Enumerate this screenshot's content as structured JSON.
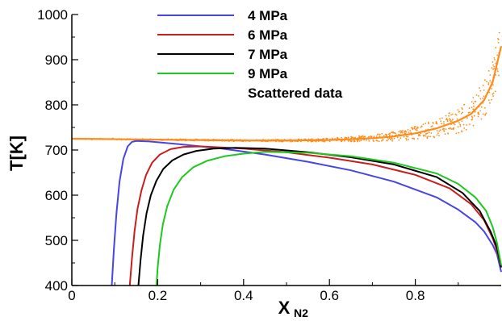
{
  "chart_data": {
    "type": "line",
    "title": "",
    "xlabel": "X",
    "xlabel_subscript": "N2",
    "ylabel": "T[K]",
    "xlim": [
      0,
      1
    ],
    "ylim": [
      400,
      1000
    ],
    "xticks": [
      0,
      0.2,
      0.4,
      0.6,
      0.8
    ],
    "xtick_labels": [
      "0",
      "0.2",
      "0.4",
      "0.6",
      "0.8"
    ],
    "yticks": [
      400,
      500,
      600,
      700,
      800,
      900,
      1000
    ],
    "ytick_labels": [
      "400",
      "500",
      "600",
      "700",
      "800",
      "900",
      "1000"
    ],
    "grid": false,
    "legend_position": "top-center",
    "series": [
      {
        "name": "4 MPa",
        "color": "#4646e6",
        "x": [
          0.093,
          0.098,
          0.104,
          0.111,
          0.12,
          0.13,
          0.14,
          0.15,
          0.18,
          0.25,
          0.35,
          0.45,
          0.55,
          0.65,
          0.75,
          0.85,
          0.9,
          0.94,
          0.96,
          0.98,
          0.99,
          1.0
        ],
        "y": [
          400,
          480,
          560,
          630,
          680,
          708,
          718,
          720,
          719,
          713,
          703,
          690,
          674,
          655,
          630,
          595,
          568,
          540,
          520,
          490,
          470,
          430
        ]
      },
      {
        "name": "6 MPa",
        "color": "#c81e1e",
        "x": [
          0.135,
          0.14,
          0.146,
          0.153,
          0.162,
          0.173,
          0.187,
          0.205,
          0.23,
          0.26,
          0.3,
          0.4,
          0.5,
          0.6,
          0.7,
          0.8,
          0.88,
          0.93,
          0.96,
          0.98,
          0.99,
          1.0
        ],
        "y": [
          400,
          460,
          520,
          570,
          610,
          645,
          672,
          690,
          702,
          707,
          708,
          703,
          695,
          683,
          668,
          645,
          615,
          580,
          545,
          505,
          478,
          440
        ]
      },
      {
        "name": "7 MPa",
        "color": "#000000",
        "x": [
          0.155,
          0.16,
          0.166,
          0.174,
          0.184,
          0.197,
          0.213,
          0.234,
          0.26,
          0.29,
          0.33,
          0.38,
          0.45,
          0.55,
          0.65,
          0.75,
          0.85,
          0.91,
          0.95,
          0.975,
          0.99,
          1.0
        ],
        "y": [
          400,
          455,
          510,
          560,
          600,
          632,
          658,
          677,
          690,
          698,
          703,
          705,
          703,
          695,
          684,
          668,
          640,
          605,
          565,
          520,
          485,
          440
        ]
      },
      {
        "name": "9 MPa",
        "color": "#1ec81e",
        "x": [
          0.197,
          0.2,
          0.205,
          0.212,
          0.222,
          0.237,
          0.257,
          0.283,
          0.315,
          0.355,
          0.4,
          0.45,
          0.55,
          0.65,
          0.75,
          0.85,
          0.9,
          0.94,
          0.965,
          0.98,
          0.99,
          1.0
        ],
        "y": [
          400,
          440,
          490,
          535,
          575,
          612,
          640,
          662,
          676,
          686,
          692,
          696,
          694,
          686,
          672,
          648,
          625,
          595,
          565,
          530,
          495,
          445
        ]
      },
      {
        "name": "Scattered data",
        "color": "#ff8c1a",
        "x": [
          0.0,
          0.1,
          0.2,
          0.3,
          0.4,
          0.5,
          0.6,
          0.7,
          0.75,
          0.8,
          0.85,
          0.9,
          0.93,
          0.96,
          0.98,
          1.0
        ],
        "y": [
          725,
          724,
          723,
          722,
          721,
          721,
          722,
          726,
          730,
          737,
          748,
          765,
          780,
          810,
          850,
          930
        ]
      }
    ]
  }
}
